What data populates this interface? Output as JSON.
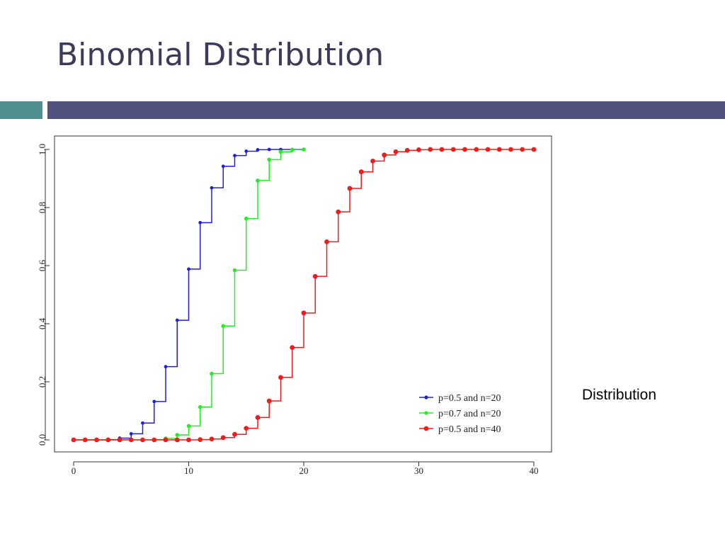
{
  "slide": {
    "title": "Binomial Distribution",
    "side_label": "Distribution"
  },
  "colors": {
    "title": "#3a3c5a",
    "bar_left": "#4f8f8f",
    "bar_right": "#52527f"
  },
  "chart_data": {
    "type": "line",
    "title": "",
    "xlabel": "",
    "ylabel": "",
    "xlim": [
      0,
      40
    ],
    "ylim": [
      0,
      1
    ],
    "x_ticks": [
      "0",
      "10",
      "20",
      "30",
      "40"
    ],
    "y_ticks": [
      "0.0",
      "0.2",
      "0.4",
      "0.6",
      "0.8",
      "1.0"
    ],
    "legend_position": "bottom-right",
    "grid": false,
    "step": true,
    "series": [
      {
        "name": "p=0.5 and n=20",
        "color": "#1f1fe0",
        "x": [
          0,
          1,
          2,
          3,
          4,
          5,
          6,
          7,
          8,
          9,
          10,
          11,
          12,
          13,
          14,
          15,
          16,
          17,
          18,
          19,
          20
        ],
        "y": [
          0.0,
          0.0,
          0.0,
          0.001,
          0.006,
          0.021,
          0.058,
          0.132,
          0.252,
          0.412,
          0.588,
          0.748,
          0.868,
          0.942,
          0.979,
          0.994,
          0.999,
          1.0,
          1.0,
          1.0,
          1.0
        ]
      },
      {
        "name": "p=0.7 and n=20",
        "color": "#22ee22",
        "x": [
          0,
          1,
          2,
          3,
          4,
          5,
          6,
          7,
          8,
          9,
          10,
          11,
          12,
          13,
          14,
          15,
          16,
          17,
          18,
          19,
          20
        ],
        "y": [
          0.0,
          0.0,
          0.0,
          0.0,
          0.0,
          0.0,
          0.0,
          0.001,
          0.005,
          0.017,
          0.048,
          0.113,
          0.228,
          0.392,
          0.584,
          0.762,
          0.893,
          0.965,
          0.992,
          0.999,
          1.0
        ]
      },
      {
        "name": "p=0.5 and n=40",
        "color": "#ee1c1c",
        "x": [
          0,
          1,
          2,
          3,
          4,
          5,
          6,
          7,
          8,
          9,
          10,
          11,
          12,
          13,
          14,
          15,
          16,
          17,
          18,
          19,
          20,
          21,
          22,
          23,
          24,
          25,
          26,
          27,
          28,
          29,
          30,
          31,
          32,
          33,
          34,
          35,
          36,
          37,
          38,
          39,
          40
        ],
        "y": [
          0.0,
          0.0,
          0.0,
          0.0,
          0.0,
          0.0,
          0.0,
          0.0,
          0.0,
          0.0,
          0.0,
          0.001,
          0.003,
          0.008,
          0.019,
          0.04,
          0.077,
          0.134,
          0.215,
          0.318,
          0.437,
          0.563,
          0.682,
          0.785,
          0.866,
          0.923,
          0.96,
          0.981,
          0.992,
          0.997,
          0.999,
          1.0,
          1.0,
          1.0,
          1.0,
          1.0,
          1.0,
          1.0,
          1.0,
          1.0,
          1.0
        ]
      }
    ]
  }
}
